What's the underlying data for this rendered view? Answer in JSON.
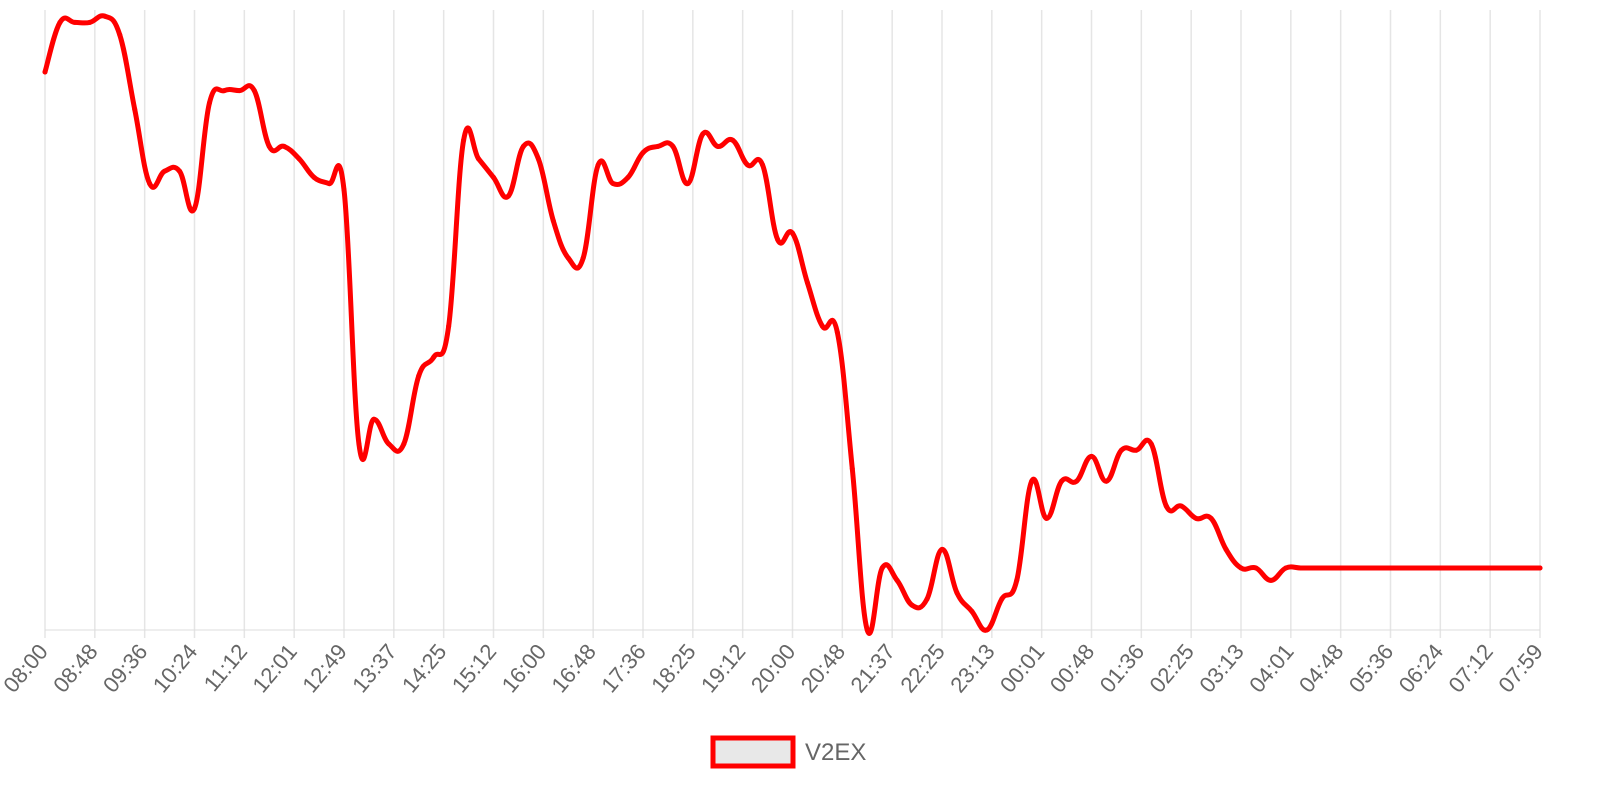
{
  "chart_data": {
    "type": "line",
    "title": "",
    "xlabel": "",
    "ylabel": "",
    "y_axis_labels_shown": false,
    "grid": "vertical",
    "legend_position": "bottom-center",
    "x_tick_labels": [
      "08:00",
      "08:48",
      "09:36",
      "10:24",
      "11:12",
      "12:01",
      "12:49",
      "13:37",
      "14:25",
      "15:12",
      "16:00",
      "16:48",
      "17:36",
      "18:25",
      "19:12",
      "20:00",
      "20:48",
      "21:37",
      "22:25",
      "23:13",
      "00:01",
      "00:48",
      "01:36",
      "02:25",
      "03:13",
      "04:01",
      "04:48",
      "05:36",
      "06:24",
      "07:12",
      "07:59"
    ],
    "series": [
      {
        "name": "V2EX",
        "color": "#ff0000",
        "points": [
          [
            0,
            90
          ],
          [
            12,
            98
          ],
          [
            24,
            98
          ],
          [
            36,
            98
          ],
          [
            48,
            99
          ],
          [
            60,
            96
          ],
          [
            72,
            84
          ],
          [
            84,
            72
          ],
          [
            96,
            74
          ],
          [
            108,
            74
          ],
          [
            120,
            68
          ],
          [
            132,
            85
          ],
          [
            144,
            87
          ],
          [
            156,
            87
          ],
          [
            168,
            87
          ],
          [
            180,
            78
          ],
          [
            192,
            78
          ],
          [
            204,
            76
          ],
          [
            216,
            73
          ],
          [
            228,
            72
          ],
          [
            240,
            71
          ],
          [
            252,
            30
          ],
          [
            264,
            34
          ],
          [
            276,
            30
          ],
          [
            288,
            30
          ],
          [
            300,
            41
          ],
          [
            312,
            44
          ],
          [
            324,
            49
          ],
          [
            336,
            79
          ],
          [
            348,
            76
          ],
          [
            360,
            73
          ],
          [
            372,
            70
          ],
          [
            384,
            78
          ],
          [
            396,
            76
          ],
          [
            408,
            66
          ],
          [
            420,
            60
          ],
          [
            432,
            60
          ],
          [
            444,
            75
          ],
          [
            456,
            72
          ],
          [
            468,
            73
          ],
          [
            480,
            77
          ],
          [
            492,
            78
          ],
          [
            504,
            78
          ],
          [
            516,
            72
          ],
          [
            528,
            80
          ],
          [
            540,
            78
          ],
          [
            552,
            79
          ],
          [
            564,
            75
          ],
          [
            576,
            75
          ],
          [
            588,
            63
          ],
          [
            600,
            64
          ],
          [
            612,
            56
          ],
          [
            624,
            49
          ],
          [
            636,
            48
          ],
          [
            648,
            26
          ],
          [
            660,
            0
          ],
          [
            672,
            10
          ],
          [
            684,
            8
          ],
          [
            696,
            4
          ],
          [
            708,
            5
          ],
          [
            720,
            13
          ],
          [
            732,
            6
          ],
          [
            744,
            3
          ],
          [
            756,
            0
          ],
          [
            768,
            5
          ],
          [
            780,
            8
          ],
          [
            792,
            24
          ],
          [
            804,
            18
          ],
          [
            816,
            24
          ],
          [
            828,
            24
          ],
          [
            840,
            28
          ],
          [
            852,
            24
          ],
          [
            864,
            29
          ],
          [
            876,
            29
          ],
          [
            888,
            30
          ],
          [
            900,
            20
          ],
          [
            912,
            20
          ],
          [
            924,
            18
          ],
          [
            936,
            18
          ],
          [
            948,
            13
          ],
          [
            960,
            10
          ],
          [
            972,
            10
          ],
          [
            984,
            8
          ],
          [
            996,
            10
          ],
          [
            1008,
            10
          ],
          [
            1020,
            10
          ],
          [
            1032,
            10
          ],
          [
            1044,
            10
          ],
          [
            1056,
            10
          ],
          [
            1068,
            10
          ],
          [
            1080,
            10
          ],
          [
            1092,
            10
          ],
          [
            1104,
            10
          ],
          [
            1116,
            10
          ],
          [
            1128,
            10
          ],
          [
            1140,
            10
          ],
          [
            1152,
            10
          ],
          [
            1164,
            10
          ],
          [
            1176,
            10
          ],
          [
            1188,
            10
          ],
          [
            1200,
            10
          ]
        ]
      }
    ]
  }
}
